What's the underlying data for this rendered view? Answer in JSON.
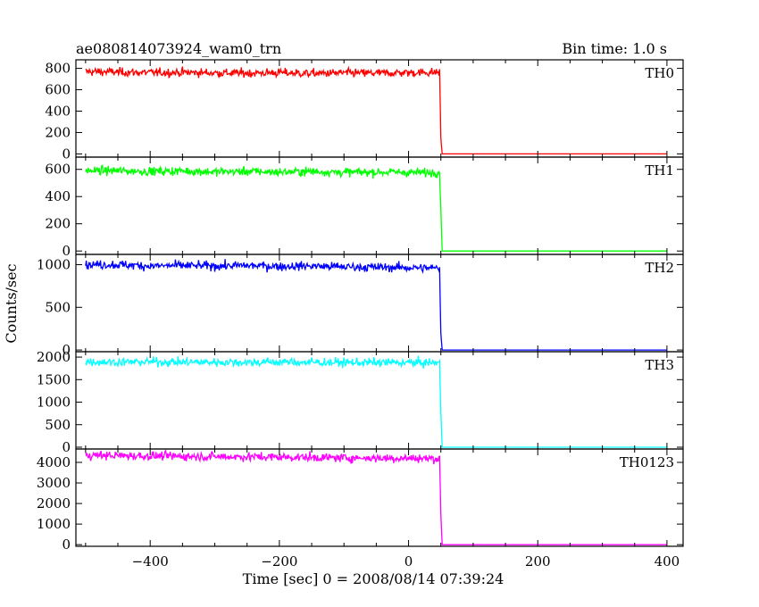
{
  "chart_data": {
    "type": "line",
    "title": "ae080814073924_wam0_trn",
    "subtitle": "Bin time: 1.0 s",
    "xlabel": "Time [sec] 0 = 2008/08/14 07:39:24",
    "ylabel": "Counts/sec",
    "xlim": [
      -515,
      425
    ],
    "xticks": [
      -400,
      -200,
      0,
      200,
      400
    ],
    "grid": false,
    "panels": [
      {
        "name": "TH0",
        "color": "#ff0000",
        "ylim": [
          -30,
          880
        ],
        "yticks": [
          0,
          200,
          400,
          600,
          800
        ],
        "x": [
          -500,
          -450,
          -400,
          -350,
          -300,
          -250,
          -200,
          -150,
          -100,
          -50,
          0,
          30,
          48,
          50,
          52,
          100,
          200,
          300,
          400
        ],
        "values": [
          770,
          765,
          760,
          762,
          758,
          755,
          760,
          752,
          758,
          755,
          760,
          762,
          765,
          150,
          0,
          0,
          0,
          0,
          0
        ]
      },
      {
        "name": "TH1",
        "color": "#00ff00",
        "ylim": [
          -25,
          690
        ],
        "yticks": [
          0,
          200,
          400,
          600
        ],
        "x": [
          -500,
          -450,
          -400,
          -350,
          -300,
          -250,
          -200,
          -150,
          -100,
          -50,
          0,
          30,
          48,
          50,
          52,
          100,
          200,
          300,
          400
        ],
        "values": [
          590,
          590,
          585,
          588,
          582,
          585,
          580,
          585,
          578,
          580,
          578,
          575,
          580,
          320,
          0,
          0,
          0,
          0,
          0
        ]
      },
      {
        "name": "TH2",
        "color": "#0000ff",
        "ylim": [
          -20,
          1120
        ],
        "yticks": [
          0,
          500,
          1000
        ],
        "x": [
          -500,
          -450,
          -400,
          -350,
          -300,
          -250,
          -200,
          -150,
          -100,
          -50,
          0,
          30,
          48,
          50,
          52,
          100,
          200,
          300,
          400
        ],
        "values": [
          1000,
          1000,
          985,
          990,
          985,
          990,
          980,
          985,
          975,
          970,
          965,
          960,
          960,
          200,
          0,
          0,
          0,
          0,
          0
        ]
      },
      {
        "name": "TH3",
        "color": "#00ffff",
        "ylim": [
          -40,
          2120
        ],
        "yticks": [
          0,
          500,
          1000,
          1500,
          2000
        ],
        "x": [
          -500,
          -450,
          -400,
          -350,
          -300,
          -250,
          -200,
          -150,
          -100,
          -50,
          0,
          30,
          48,
          50,
          52,
          100,
          200,
          300,
          400
        ],
        "values": [
          1900,
          1890,
          1895,
          1890,
          1888,
          1885,
          1890,
          1885,
          1880,
          1880,
          1878,
          1875,
          1880,
          800,
          0,
          0,
          0,
          0,
          0
        ]
      },
      {
        "name": "TH0123",
        "color": "#ff00ff",
        "ylim": [
          -80,
          4650
        ],
        "yticks": [
          0,
          1000,
          2000,
          3000,
          4000
        ],
        "x": [
          -500,
          -450,
          -400,
          -350,
          -300,
          -250,
          -200,
          -150,
          -100,
          -50,
          0,
          30,
          48,
          50,
          52,
          100,
          200,
          300,
          400
        ],
        "values": [
          4350,
          4330,
          4310,
          4300,
          4280,
          4270,
          4260,
          4240,
          4220,
          4210,
          4200,
          4190,
          4180,
          1500,
          0,
          0,
          0,
          0,
          0
        ]
      }
    ]
  }
}
